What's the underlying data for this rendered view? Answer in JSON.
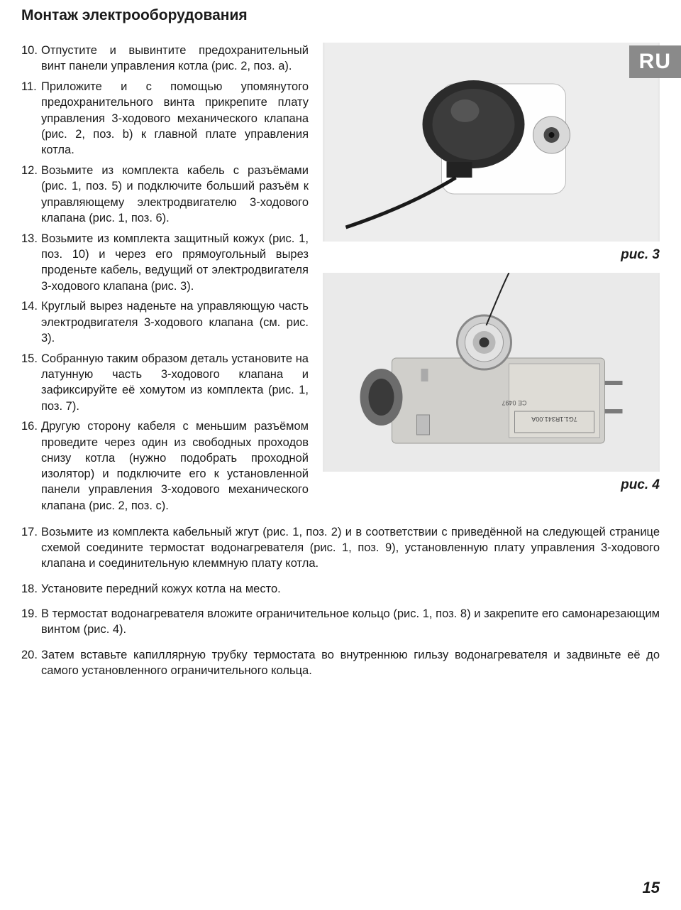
{
  "title": "Монтаж электрооборудования",
  "lang_badge": "RU",
  "page_number": "15",
  "left_steps": [
    {
      "n": "10.",
      "t": "Отпустите и вывинтите предохранительный винт панели управления котла (рис. 2, поз. a)."
    },
    {
      "n": "11.",
      "t": "Приложите и с помощью упомянутого предохранительного винта прикрепите плату управления 3-ходового механического клапана (рис. 2, поз. b) к главной плате управления котла."
    },
    {
      "n": "12.",
      "t": "Возьмите из комплекта кабель с разъёмами (рис. 1, поз. 5) и подключите больший разъём к управляющему электродвигателю 3-ходового клапана (рис. 1, поз. 6)."
    },
    {
      "n": "13.",
      "t": "Возьмите из комплекта защитный кожух (рис. 1, поз. 10) и через его прямоугольный вырез проденьте кабель, ведущий от электродвигателя 3-ходового клапана (рис. 3)."
    },
    {
      "n": "14.",
      "t": "Круглый вырез наденьте на управляющую часть электродвигателя 3-ходового клапана (см. рис. 3)."
    },
    {
      "n": "15.",
      "t": "Собранную таким образом деталь установите на латунную часть 3-ходового клапана и зафиксируйте её хомутом из комплекта (рис. 1, поз. 7)."
    },
    {
      "n": "16.",
      "t": "Другую сторону кабеля с меньшим разъёмом проведите через один из свободных проходов снизу котла (нужно подобрать проходной изолятор) и подключите его к установленной панели управления 3-ходового механического клапана (рис. 2, поз. c)."
    }
  ],
  "full_steps": [
    {
      "n": "17.",
      "t": "Возьмите из комплекта кабельный жгут (рис. 1, поз. 2) и в соответствии с приведённой на следующей странице схемой соедините термостат водонагревателя (рис. 1, поз. 9), установленную плату управления 3-ходового клапана и соединительную клеммную плату котла."
    },
    {
      "n": "18.",
      "t": "Установите передний кожух котла на место."
    },
    {
      "n": "19.",
      "t": "В термостат водонагревателя вложите ограничительное кольцо (рис. 1, поз. 8) и закрепите его самонарезающим винтом (рис. 4)."
    },
    {
      "n": "20.",
      "t": "Затем вставьте капиллярную трубку термостата во внутреннюю гильзу водонагревателя и задвиньте её до самого установленного ограничительного кольца."
    }
  ],
  "fig3_caption": "рис. 3",
  "fig4_caption": "рис. 4"
}
